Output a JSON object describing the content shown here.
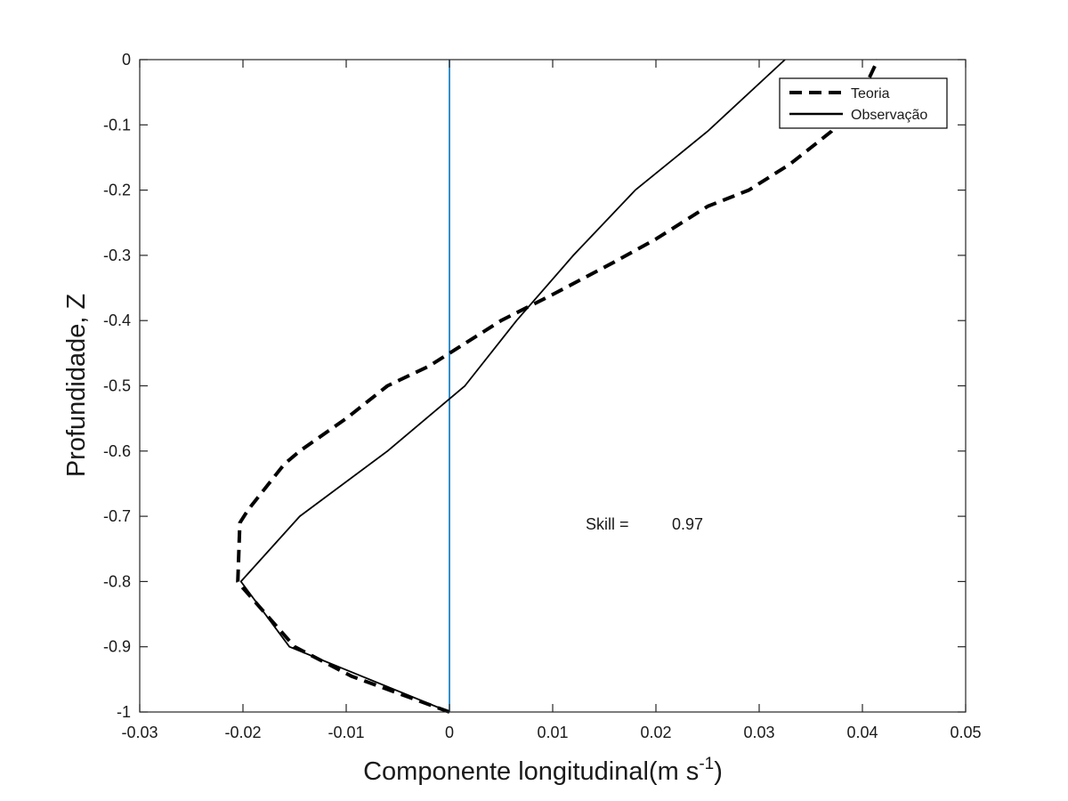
{
  "chart_data": {
    "type": "line",
    "title": "",
    "xlabel_main": "Componente longitudinal(m s",
    "xlabel_sup": "-1",
    "xlabel_close": ")",
    "ylabel": "Profundidade, Z",
    "xlim": [
      -0.03,
      0.05
    ],
    "ylim": [
      -1,
      0
    ],
    "xticks": [
      -0.03,
      -0.02,
      -0.01,
      0,
      0.01,
      0.02,
      0.03,
      0.04,
      0.05
    ],
    "xtick_labels": [
      "-0.03",
      "-0.02",
      "-0.01",
      "0",
      "0.01",
      "0.02",
      "0.03",
      "0.04",
      "0.05"
    ],
    "yticks": [
      0,
      -0.1,
      -0.2,
      -0.3,
      -0.4,
      -0.5,
      -0.6,
      -0.7,
      -0.8,
      -0.9,
      -1
    ],
    "ytick_labels": [
      "0",
      "-0.1",
      "-0.2",
      "-0.3",
      "-0.4",
      "-0.5",
      "-0.6",
      "-0.7",
      "-0.8",
      "-0.9",
      "-1"
    ],
    "grid": false,
    "legend_position": "top-right",
    "reference_line": {
      "x": 0,
      "color": "#0072BD"
    },
    "series": [
      {
        "name": "Teoria",
        "style": "dashed",
        "color": "#000000",
        "points": [
          [
            0,
            -1
          ],
          [
            -0.0095,
            -0.945
          ],
          [
            -0.015,
            -0.9
          ],
          [
            -0.02,
            -0.81
          ],
          [
            -0.0205,
            -0.8
          ],
          [
            -0.0203,
            -0.71
          ],
          [
            -0.0195,
            -0.69
          ],
          [
            -0.016,
            -0.62
          ],
          [
            -0.0145,
            -0.6
          ],
          [
            -0.01,
            -0.55
          ],
          [
            -0.006,
            -0.5
          ],
          [
            -0.002,
            -0.47
          ],
          [
            0,
            -0.45
          ],
          [
            0.005,
            -0.4
          ],
          [
            0.01,
            -0.36
          ],
          [
            0.016,
            -0.31
          ],
          [
            0.02,
            -0.275
          ],
          [
            0.025,
            -0.225
          ],
          [
            0.029,
            -0.2
          ],
          [
            0.033,
            -0.16
          ],
          [
            0.037,
            -0.11
          ],
          [
            0.04,
            -0.05
          ],
          [
            0.0415,
            0
          ]
        ]
      },
      {
        "name": "Observação",
        "style": "solid",
        "color": "#000000",
        "points": [
          [
            0,
            -1
          ],
          [
            -0.0155,
            -0.9
          ],
          [
            -0.0202,
            -0.8
          ],
          [
            -0.0145,
            -0.7
          ],
          [
            -0.006,
            -0.6
          ],
          [
            0,
            -0.52
          ],
          [
            0.0015,
            -0.5
          ],
          [
            0.0065,
            -0.4
          ],
          [
            0.012,
            -0.3
          ],
          [
            0.018,
            -0.2
          ],
          [
            0.025,
            -0.11
          ],
          [
            0.0325,
            0
          ]
        ]
      }
    ],
    "annotation": {
      "label": "Skill =",
      "value": "0.97"
    }
  }
}
